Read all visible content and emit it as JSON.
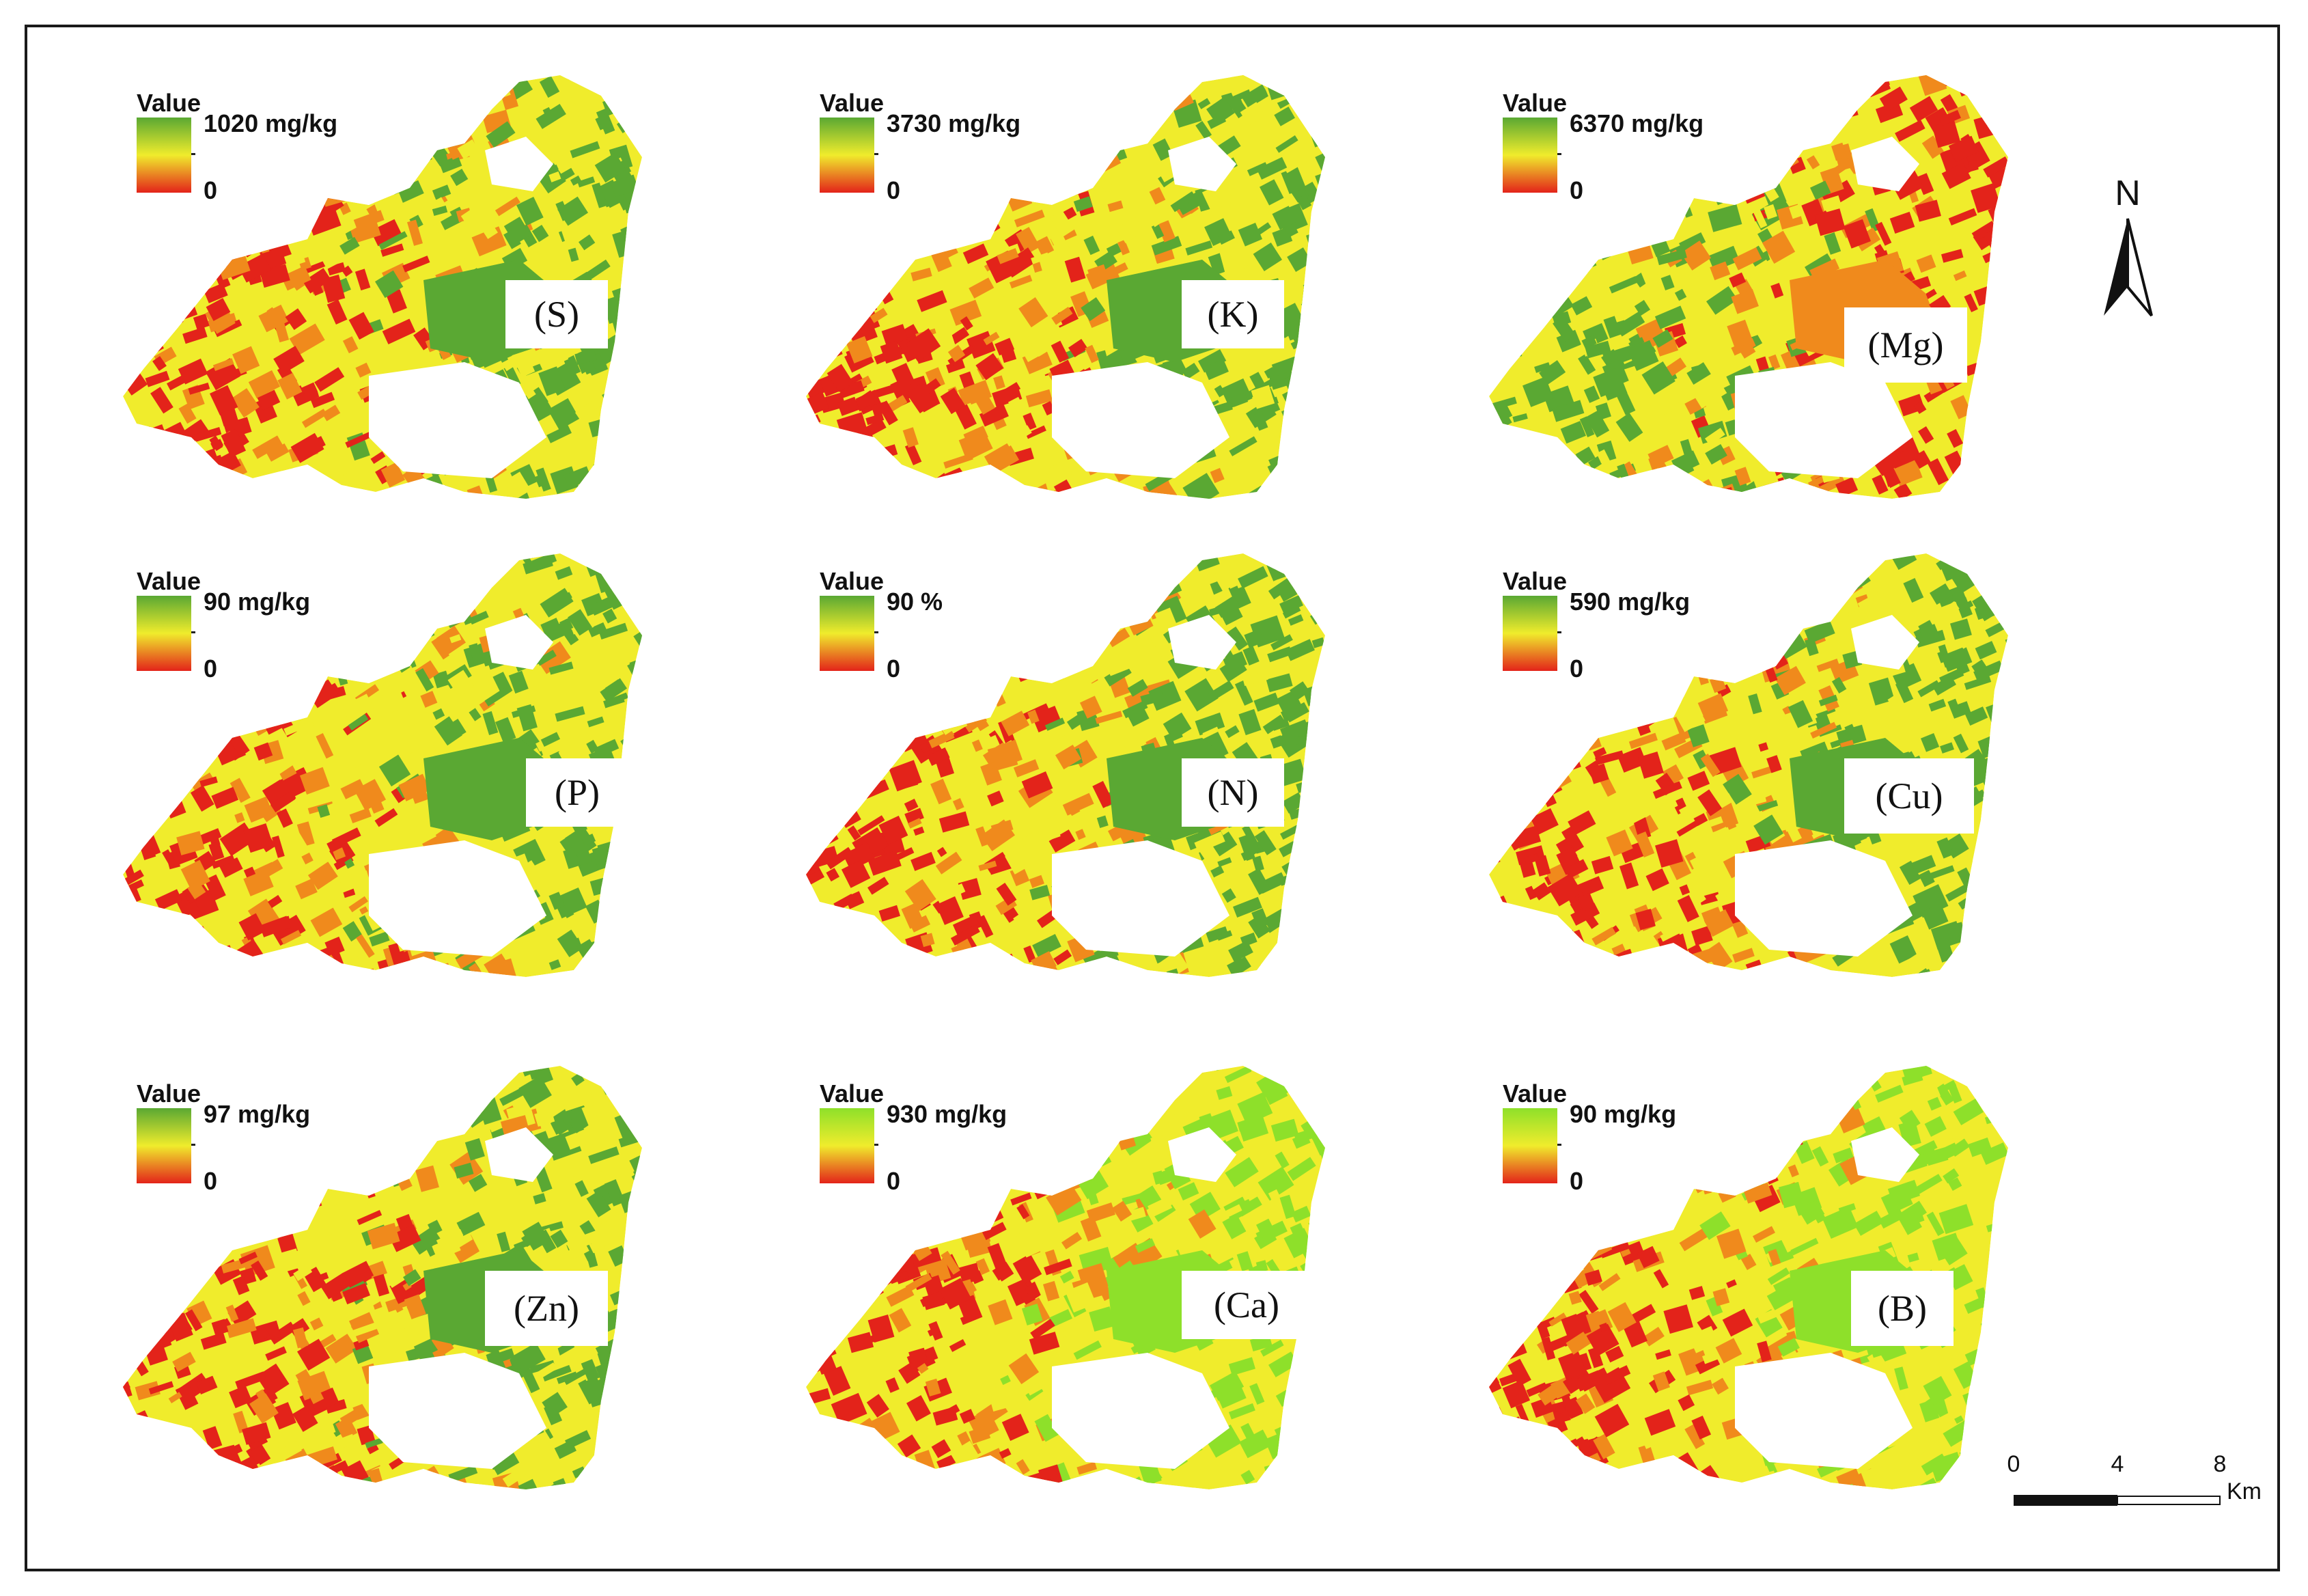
{
  "colors": {
    "green": "#5aa833",
    "lime": "#8ee02a",
    "yellow": "#f0ec2c",
    "orange": "#f08a1c",
    "red": "#e3231a",
    "frame": "#1a1a1a"
  },
  "legend_title": "Value",
  "panels": [
    {
      "id": "S",
      "label": "(S)",
      "max": "1020 mg/kg",
      "min": "0",
      "ramp": "green",
      "map_bias": 0.45
    },
    {
      "id": "K",
      "label": "(K)",
      "max": "3730 mg/kg",
      "min": "0",
      "ramp": "green",
      "map_bias": 0.45
    },
    {
      "id": "Mg",
      "label": "(Mg)",
      "max": "6370 mg/kg",
      "min": "0",
      "ramp": "green",
      "map_bias": 0.6
    },
    {
      "id": "P",
      "label": "(P)",
      "max": "90 mg/kg",
      "min": "0",
      "ramp": "green",
      "map_bias": 0.45
    },
    {
      "id": "N",
      "label": "(N)",
      "max": "90 %",
      "min": "0",
      "ramp": "green",
      "map_bias": 0.45
    },
    {
      "id": "Cu",
      "label": "(Cu)",
      "max": "590 mg/kg",
      "min": "0",
      "ramp": "green",
      "map_bias": 0.45
    },
    {
      "id": "Zn",
      "label": "(Zn)",
      "max": "97 mg/kg",
      "min": "0",
      "ramp": "green",
      "map_bias": 0.45
    },
    {
      "id": "Ca",
      "label": "(Ca)",
      "max": "930 mg/kg",
      "min": "0",
      "ramp": "lime",
      "map_bias": 0.4
    },
    {
      "id": "B",
      "label": "(B)",
      "max": "90 mg/kg",
      "min": "0",
      "ramp": "lime",
      "map_bias": 0.4
    }
  ],
  "north_arrow": {
    "label": "N",
    "icon": "north-arrow-icon"
  },
  "scale_bar": {
    "ticks": [
      "0",
      "4",
      "8"
    ],
    "unit": "Km"
  }
}
